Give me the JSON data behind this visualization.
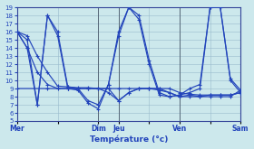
{
  "xlabel": "Température (°c)",
  "background_color": "#cce8ec",
  "grid_color": "#99bbcc",
  "line_color": "#2244bb",
  "x_tick_labels": [
    "Mer",
    "",
    "Dim",
    "Jeu",
    "",
    "Ven",
    "",
    "Sam"
  ],
  "x_tick_positions": [
    0,
    4,
    8,
    10,
    13,
    16,
    19,
    22
  ],
  "ylim": [
    5,
    19
  ],
  "yticks": [
    5,
    6,
    7,
    8,
    9,
    10,
    11,
    12,
    13,
    14,
    15,
    16,
    17,
    18,
    19
  ],
  "xlim": [
    0,
    22
  ],
  "vlines_x": [
    0,
    8,
    10,
    16,
    22
  ],
  "lines": [
    {
      "x": [
        0,
        1,
        2,
        3,
        4,
        5,
        6,
        7,
        8,
        9,
        10,
        11,
        12,
        13,
        14,
        15,
        16,
        17,
        18,
        19,
        20,
        21,
        22
      ],
      "y": [
        16,
        15.5,
        13,
        11,
        9.3,
        9.2,
        9.1,
        9.1,
        9.0,
        9.0,
        9.0,
        9.0,
        9.0,
        9.0,
        9.0,
        9.0,
        8.5,
        8.3,
        8.2,
        8.2,
        8.2,
        8.2,
        8.5
      ]
    },
    {
      "x": [
        0,
        1,
        2,
        3,
        4,
        5,
        6,
        7,
        8,
        9,
        10,
        11,
        12,
        13,
        14,
        15,
        16,
        17,
        18,
        19,
        20,
        21,
        22
      ],
      "y": [
        16,
        14,
        11,
        9.5,
        9.0,
        9.0,
        9.0,
        9.0,
        9.0,
        8.5,
        7.5,
        8.5,
        9.0,
        9.0,
        8.8,
        8.5,
        8.0,
        8.0,
        8.0,
        8.0,
        8.0,
        8.0,
        8.8
      ]
    },
    {
      "x": [
        0,
        1,
        2,
        3,
        4,
        5,
        6,
        7,
        8,
        9,
        10,
        11,
        12,
        13,
        14,
        15,
        16,
        17,
        18,
        19,
        20,
        21,
        22
      ],
      "y": [
        16,
        15,
        7,
        18,
        16,
        9.2,
        9.0,
        7.5,
        7.0,
        9.5,
        15.5,
        19,
        18,
        12.5,
        8.5,
        8.0,
        8.2,
        9.0,
        9.5,
        19,
        19,
        10,
        8.5
      ]
    },
    {
      "x": [
        0,
        1,
        2,
        3,
        4,
        5,
        6,
        7,
        8,
        9,
        10,
        11,
        12,
        13,
        14,
        15,
        16,
        17,
        18,
        19,
        20,
        21,
        22
      ],
      "y": [
        16,
        14,
        7,
        18,
        15.5,
        9.0,
        8.8,
        7.2,
        6.5,
        9.5,
        16,
        19,
        17.5,
        12,
        8.2,
        8.0,
        8.2,
        8.5,
        9.0,
        19,
        19,
        10.2,
        8.8
      ]
    },
    {
      "x": [
        0,
        3,
        5,
        6,
        7,
        8,
        9,
        10,
        11,
        12,
        13,
        14,
        15,
        16,
        17,
        18,
        19,
        20,
        21,
        22
      ],
      "y": [
        9,
        9,
        9,
        9,
        9,
        9,
        9,
        7.5,
        8.5,
        9,
        9,
        9,
        8.5,
        8.0,
        8.2,
        8.0,
        8.2,
        8.2,
        8.2,
        8.5
      ]
    }
  ]
}
